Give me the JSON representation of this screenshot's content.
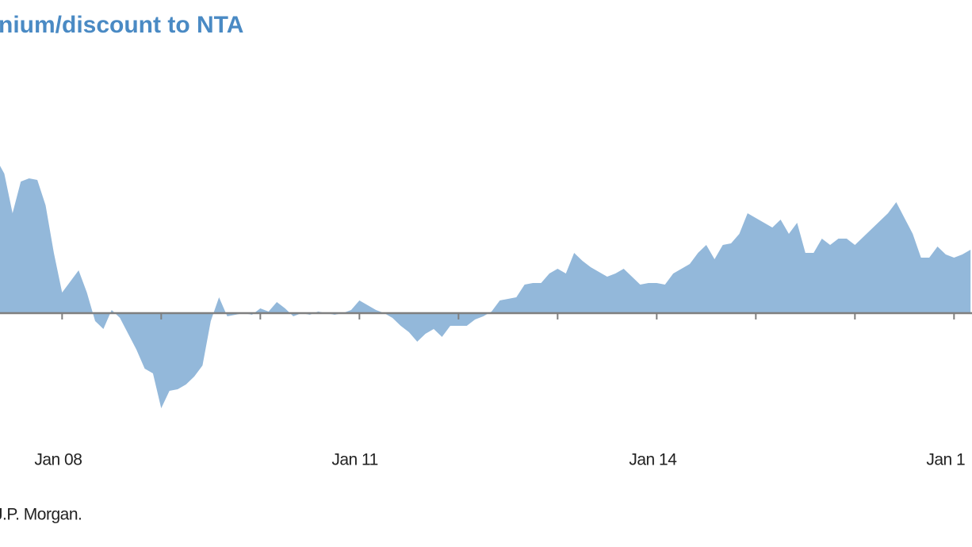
{
  "chart_data": {
    "type": "area",
    "title": "nium/discount to NTA",
    "source": "J.P. Morgan.",
    "color": "#93b8da",
    "categories": [
      null,
      null,
      null,
      null,
      null,
      null,
      null,
      null,
      "Jan 08",
      null,
      null,
      null,
      null,
      null,
      null,
      null,
      null,
      null,
      null,
      null,
      null,
      null,
      null,
      null,
      null,
      null,
      null,
      null,
      null,
      null,
      null,
      null,
      null,
      null,
      null,
      null,
      null,
      null,
      null,
      null,
      null,
      null,
      null,
      null,
      "Jan 11",
      null,
      null,
      null,
      null,
      null,
      null,
      null,
      null,
      null,
      null,
      null,
      null,
      null,
      null,
      null,
      null,
      null,
      null,
      null,
      null,
      null,
      null,
      null,
      null,
      null,
      null,
      null,
      null,
      null,
      null,
      null,
      null,
      null,
      null,
      null,
      "Jan 14",
      null,
      null,
      null,
      null,
      null,
      null,
      null,
      null,
      null,
      null,
      null,
      null,
      null,
      null,
      null,
      null,
      null,
      null,
      null,
      null,
      null,
      null,
      null,
      null,
      null,
      null,
      null,
      null,
      null,
      null,
      null,
      null,
      null,
      null,
      null,
      "Jan 1",
      null,
      null
    ],
    "values": [
      9.75,
      8.8,
      6.3,
      8.3,
      8.5,
      8.4,
      6.8,
      3.8,
      1.3,
      2.0,
      2.7,
      1.3,
      -0.5,
      -1.0,
      0.2,
      -0.3,
      -1.3,
      -2.3,
      -3.5,
      -3.8,
      -6.0,
      -4.9,
      -4.8,
      -4.5,
      -4.0,
      -3.3,
      -0.5,
      1.0,
      -0.2,
      -0.1,
      0,
      -0.1,
      0.3,
      0.1,
      0.7,
      0.3,
      -0.2,
      0,
      -0.1,
      0.1,
      0,
      -0.1,
      0,
      0.2,
      0.8,
      0.5,
      0.2,
      0,
      -0.3,
      -0.8,
      -1.2,
      -1.8,
      -1.3,
      -1.0,
      -1.5,
      -0.8,
      -0.8,
      -0.8,
      -0.4,
      -0.2,
      0.1,
      0.8,
      0.9,
      1.0,
      1.8,
      1.9,
      1.9,
      2.5,
      2.8,
      2.5,
      3.8,
      3.3,
      2.9,
      2.6,
      2.3,
      2.5,
      2.8,
      2.3,
      1.8,
      1.9,
      1.9,
      1.8,
      2.5,
      2.8,
      3.1,
      3.8,
      4.3,
      3.4,
      4.3,
      4.4,
      5.0,
      6.3,
      6.0,
      5.7,
      5.4,
      5.9,
      5.0,
      5.7,
      3.8,
      3.8,
      4.7,
      4.3,
      4.7,
      4.7,
      4.3,
      4.8,
      5.3,
      5.8,
      6.3,
      7.0,
      6.0,
      5.0,
      3.5,
      3.5,
      4.2,
      3.7,
      3.5,
      3.7,
      4.0
    ],
    "ylim": [
      -8,
      12
    ],
    "tick_categories": [
      8,
      20,
      32,
      44,
      56,
      68,
      80,
      92,
      104,
      116
    ]
  }
}
